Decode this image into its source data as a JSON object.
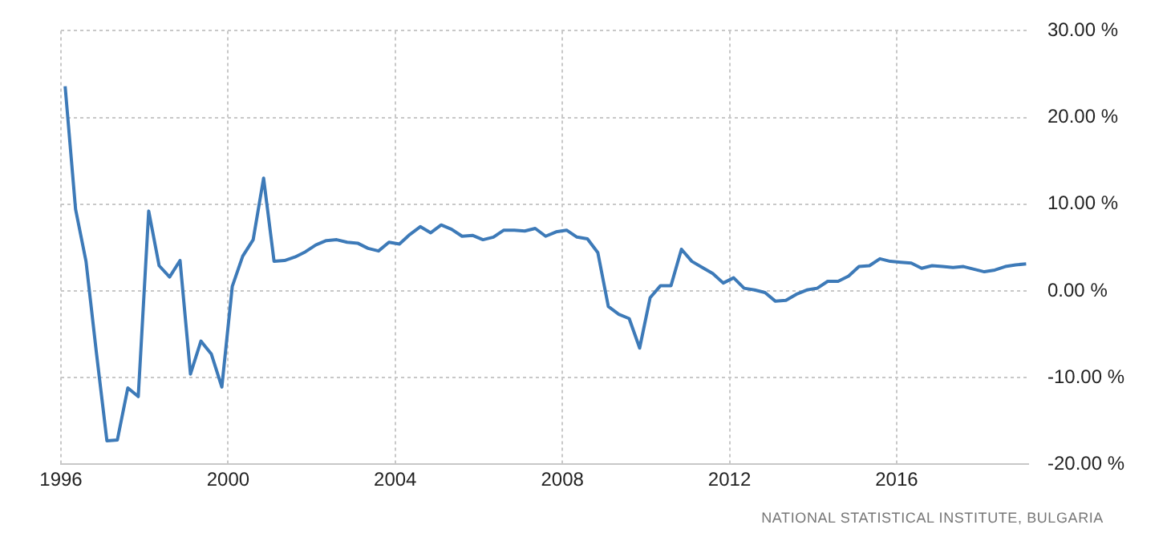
{
  "chart_data": {
    "type": "line",
    "annotations": [
      "NATIONAL STATISTICAL INSTITUTE, BULGARIA"
    ],
    "x": [
      1996.1,
      1996.35,
      1996.6,
      1996.85,
      1997.1,
      1997.35,
      1997.6,
      1997.85,
      1998.1,
      1998.35,
      1998.6,
      1998.85,
      1999.1,
      1999.35,
      1999.6,
      1999.85,
      2000.1,
      2000.35,
      2000.6,
      2000.85,
      2001.1,
      2001.35,
      2001.6,
      2001.85,
      2002.1,
      2002.35,
      2002.6,
      2002.85,
      2003.1,
      2003.35,
      2003.6,
      2003.85,
      2004.1,
      2004.35,
      2004.6,
      2004.85,
      2005.1,
      2005.35,
      2005.6,
      2005.85,
      2006.1,
      2006.35,
      2006.6,
      2006.85,
      2007.1,
      2007.35,
      2007.6,
      2007.85,
      2008.1,
      2008.35,
      2008.6,
      2008.85,
      2009.1,
      2009.35,
      2009.6,
      2009.85,
      2010.1,
      2010.35,
      2010.6,
      2010.85,
      2011.1,
      2011.35,
      2011.6,
      2011.85,
      2012.1,
      2012.35,
      2012.6,
      2012.85,
      2013.1,
      2013.35,
      2013.6,
      2013.85,
      2014.1,
      2014.35,
      2014.6,
      2014.85,
      2015.1,
      2015.35,
      2015.6,
      2015.85,
      2016.1,
      2016.35,
      2016.6,
      2016.85,
      2017.1,
      2017.35,
      2017.6,
      2017.85,
      2018.1,
      2018.35,
      2018.6,
      2018.85,
      2019.1
    ],
    "series": [
      {
        "color": "#3d7ab8",
        "values": [
          23.6,
          9.4,
          3.4,
          -7.2,
          -17.3,
          -17.2,
          -11.2,
          -12.2,
          9.2,
          2.9,
          1.6,
          3.5,
          -9.6,
          -5.8,
          -7.3,
          -11.1,
          0.5,
          4.0,
          5.9,
          13.0,
          3.4,
          3.5,
          3.9,
          4.5,
          5.3,
          5.8,
          5.9,
          5.6,
          5.5,
          4.9,
          4.6,
          5.6,
          5.4,
          6.5,
          7.4,
          6.7,
          7.6,
          7.1,
          6.3,
          6.4,
          5.9,
          6.2,
          7.0,
          7.0,
          6.9,
          7.2,
          6.3,
          6.8,
          7.0,
          6.2,
          6.0,
          4.4,
          -1.8,
          -2.7,
          -3.2,
          -6.6,
          -0.8,
          0.6,
          0.6,
          4.8,
          3.4,
          2.7,
          2.0,
          0.9,
          1.5,
          0.3,
          0.1,
          -0.2,
          -1.2,
          -1.1,
          -0.4,
          0.1,
          0.3,
          1.1,
          1.1,
          1.7,
          2.8,
          2.9,
          3.7,
          3.4,
          3.3,
          3.2,
          2.6,
          2.9,
          2.8,
          2.7,
          2.8,
          2.5,
          2.2,
          2.4,
          2.8,
          3.0,
          3.1
        ]
      }
    ],
    "xlim": [
      1996,
      2019.15
    ],
    "xticks": [
      1996,
      2000,
      2004,
      2008,
      2012,
      2016
    ],
    "ylim": [
      -20,
      30
    ],
    "yticks": [
      {
        "value": -20,
        "label": "-20.00 %"
      },
      {
        "value": -10,
        "label": "-10.00 %"
      },
      {
        "value": 0,
        "label": "0.00 %"
      },
      {
        "value": 10,
        "label": "10.00 %"
      },
      {
        "value": 20,
        "label": "20.00 %"
      },
      {
        "value": 30,
        "label": "30.00 %"
      }
    ],
    "grid": true,
    "legend": false,
    "marker": "none",
    "line_style": "solid"
  }
}
